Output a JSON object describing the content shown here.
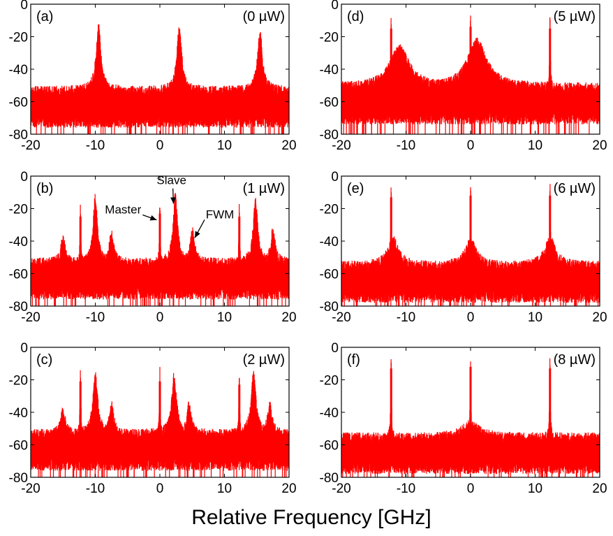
{
  "figure": {
    "xlabel": "Relative Frequency [GHz]"
  },
  "chart_data": [
    {
      "type": "line",
      "panel": "(a)",
      "power": "(0 µW)",
      "xlim": [
        -20,
        20
      ],
      "ylim": [
        -80,
        0
      ],
      "xticks": [
        -20,
        -10,
        0,
        10,
        20
      ],
      "yticks": [
        0,
        -20,
        -40,
        -60,
        -80
      ],
      "noise_floor": -60,
      "color": "#ff0000",
      "peaks": [
        {
          "x": -9.5,
          "y": -21,
          "width": 0.9
        },
        {
          "x": 3.0,
          "y": -22,
          "width": 0.9
        },
        {
          "x": 15.5,
          "y": -24,
          "width": 0.9
        }
      ],
      "annotations": []
    },
    {
      "type": "line",
      "panel": "(b)",
      "power": "(1 µW)",
      "xlim": [
        -20,
        20
      ],
      "ylim": [
        -80,
        0
      ],
      "xticks": [
        -20,
        -10,
        0,
        10,
        20
      ],
      "yticks": [
        0,
        -20,
        -40,
        -60,
        -80
      ],
      "noise_floor": -60,
      "color": "#ff0000",
      "peaks": [
        {
          "x": -12.3,
          "y": -25,
          "width": 0.15
        },
        {
          "x": -10.0,
          "y": -20,
          "width": 0.8
        },
        {
          "x": -7.5,
          "y": -42,
          "width": 0.8
        },
        {
          "x": -15.0,
          "y": -45,
          "width": 0.8
        },
        {
          "x": 0.0,
          "y": -23,
          "width": 0.15
        },
        {
          "x": 2.4,
          "y": -19,
          "width": 0.8
        },
        {
          "x": 5.0,
          "y": -40,
          "width": 0.8
        },
        {
          "x": 12.3,
          "y": -25,
          "width": 0.15
        },
        {
          "x": 14.8,
          "y": -21,
          "width": 0.8
        },
        {
          "x": 17.5,
          "y": -40,
          "width": 0.8
        }
      ],
      "annotations": [
        {
          "text": "Master",
          "target_x": 0.0,
          "target_y": -24
        },
        {
          "text": "Slave",
          "target_x": 2.4,
          "target_y": -20
        },
        {
          "text": "FWM",
          "target_x": 5.0,
          "target_y": -41
        }
      ]
    },
    {
      "type": "line",
      "panel": "(c)",
      "power": "(2 µW)",
      "xlim": [
        -20,
        20
      ],
      "ylim": [
        -80,
        0
      ],
      "xticks": [
        -20,
        -10,
        0,
        10,
        20
      ],
      "yticks": [
        0,
        -20,
        -40,
        -60,
        -80
      ],
      "noise_floor": -60,
      "color": "#ff0000",
      "peaks": [
        {
          "x": -12.3,
          "y": -21,
          "width": 0.15
        },
        {
          "x": -10.0,
          "y": -24,
          "width": 0.9
        },
        {
          "x": -7.5,
          "y": -42,
          "width": 0.8
        },
        {
          "x": -15.0,
          "y": -45,
          "width": 0.8
        },
        {
          "x": 0.0,
          "y": -21,
          "width": 0.15
        },
        {
          "x": 2.2,
          "y": -24,
          "width": 0.9
        },
        {
          "x": 4.5,
          "y": -42,
          "width": 0.8
        },
        {
          "x": 12.3,
          "y": -23,
          "width": 0.15
        },
        {
          "x": 14.5,
          "y": -24,
          "width": 0.9
        },
        {
          "x": 17.0,
          "y": -42,
          "width": 0.8
        }
      ],
      "annotations": []
    },
    {
      "type": "line",
      "panel": "(d)",
      "power": "(5 µW)",
      "xlim": [
        -20,
        20
      ],
      "ylim": [
        -80,
        0
      ],
      "xticks": [
        -20,
        -10,
        0,
        10,
        20
      ],
      "yticks": [
        0,
        -20,
        -40,
        -60,
        -80
      ],
      "noise_floor": -58,
      "color": "#ff0000",
      "peaks": [
        {
          "x": -12.3,
          "y": -15,
          "width": 0.15
        },
        {
          "x": -11.0,
          "y": -34,
          "width": 3.5
        },
        {
          "x": 0.0,
          "y": -14,
          "width": 0.15
        },
        {
          "x": 1.0,
          "y": -30,
          "width": 3.5
        },
        {
          "x": 12.3,
          "y": -15,
          "width": 0.15
        }
      ],
      "annotations": []
    },
    {
      "type": "line",
      "panel": "(e)",
      "power": "(6 µW)",
      "xlim": [
        -20,
        20
      ],
      "ylim": [
        -80,
        0
      ],
      "xticks": [
        -20,
        -10,
        0,
        10,
        20
      ],
      "yticks": [
        0,
        -20,
        -40,
        -60,
        -80
      ],
      "noise_floor": -62,
      "color": "#ff0000",
      "peaks": [
        {
          "x": -12.3,
          "y": -13,
          "width": 0.15
        },
        {
          "x": -12.0,
          "y": -46,
          "width": 2.0
        },
        {
          "x": 0.0,
          "y": -12,
          "width": 0.15
        },
        {
          "x": 0.0,
          "y": -47,
          "width": 2.0
        },
        {
          "x": 12.3,
          "y": -12,
          "width": 0.15
        },
        {
          "x": 12.3,
          "y": -46,
          "width": 2.0
        }
      ],
      "annotations": []
    },
    {
      "type": "line",
      "panel": "(f)",
      "power": "(8 µW)",
      "xlim": [
        -20,
        20
      ],
      "ylim": [
        -80,
        0
      ],
      "xticks": [
        -20,
        -10,
        0,
        10,
        20
      ],
      "yticks": [
        0,
        -20,
        -40,
        -60,
        -80
      ],
      "noise_floor": -62,
      "color": "#ff0000",
      "peaks": [
        {
          "x": -12.3,
          "y": -13,
          "width": 0.15
        },
        {
          "x": 0.0,
          "y": -12,
          "width": 0.15
        },
        {
          "x": 0.0,
          "y": -54,
          "width": 3.0
        },
        {
          "x": 12.3,
          "y": -13,
          "width": 0.15
        }
      ],
      "annotations": []
    }
  ]
}
